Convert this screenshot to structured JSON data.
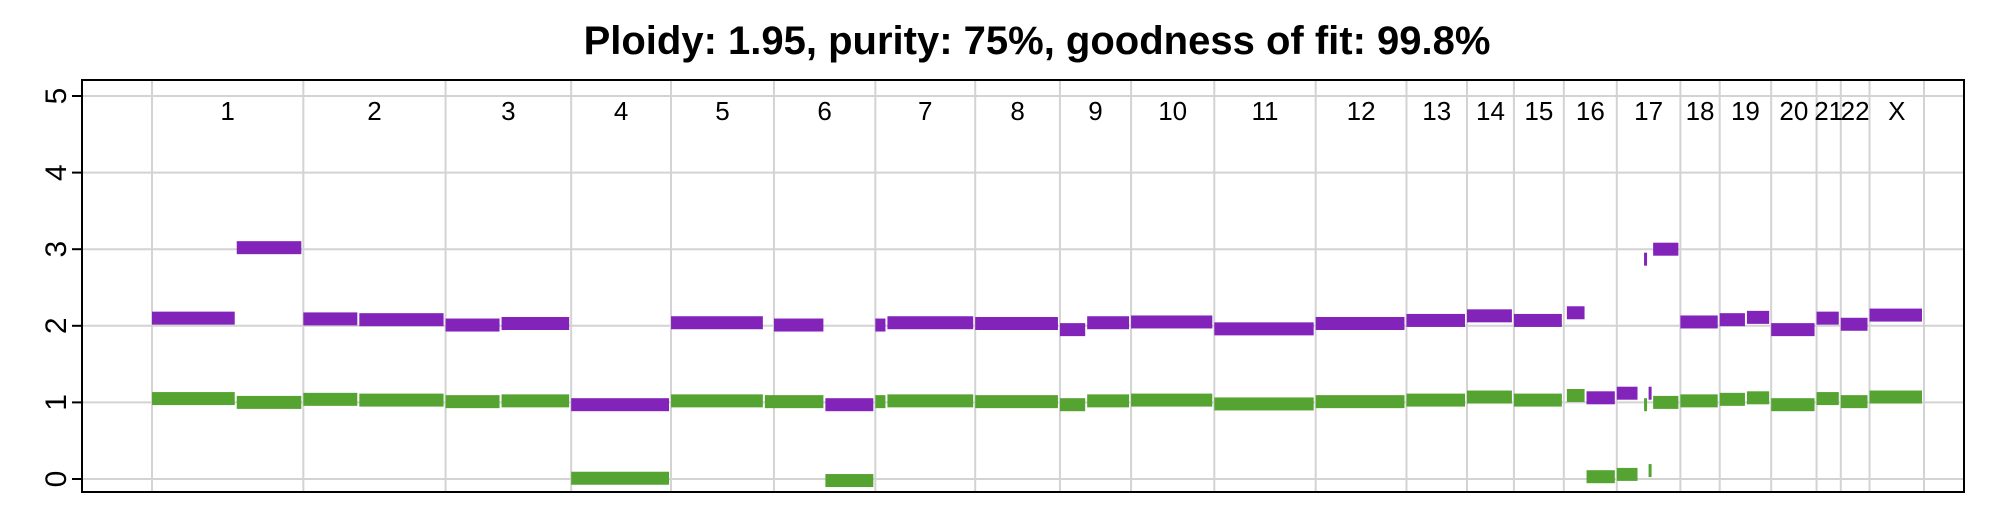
{
  "chart_data": {
    "type": "segment",
    "title": "Ploidy: 1.95, purity: 75%, goodness of fit: 99.8%",
    "xlabel": "",
    "ylabel": "",
    "ylim": [
      0,
      5
    ],
    "yticks": [
      0,
      1,
      2,
      3,
      4,
      5
    ],
    "grid": true,
    "colors": {
      "major": "#8224b9",
      "minor": "#55a331"
    },
    "chromosomes": [
      {
        "label": "1",
        "start": 0,
        "end": 1000
      },
      {
        "label": "2",
        "start": 1000,
        "end": 1940
      },
      {
        "label": "3",
        "start": 1940,
        "end": 2770
      },
      {
        "label": "4",
        "start": 2770,
        "end": 3430
      },
      {
        "label": "5",
        "start": 3430,
        "end": 4110
      },
      {
        "label": "6",
        "start": 4110,
        "end": 4780
      },
      {
        "label": "7",
        "start": 4780,
        "end": 5440
      },
      {
        "label": "8",
        "start": 5440,
        "end": 6000
      },
      {
        "label": "9",
        "start": 6000,
        "end": 6470
      },
      {
        "label": "10",
        "start": 6470,
        "end": 7020
      },
      {
        "label": "11",
        "start": 7020,
        "end": 7690
      },
      {
        "label": "12",
        "start": 7690,
        "end": 8290
      },
      {
        "label": "13",
        "start": 8290,
        "end": 8690
      },
      {
        "label": "14",
        "start": 8690,
        "end": 9000
      },
      {
        "label": "15",
        "start": 9000,
        "end": 9330
      },
      {
        "label": "16",
        "start": 9330,
        "end": 9680
      },
      {
        "label": "17",
        "start": 9680,
        "end": 10100
      },
      {
        "label": "18",
        "start": 10100,
        "end": 10360
      },
      {
        "label": "19",
        "start": 10360,
        "end": 10700
      },
      {
        "label": "20",
        "start": 10700,
        "end": 11000
      },
      {
        "label": "21",
        "start": 11000,
        "end": 11160
      },
      {
        "label": "22",
        "start": 11160,
        "end": 11350
      },
      {
        "label": "X",
        "start": 11350,
        "end": 11710
      }
    ],
    "series": [
      {
        "key": "major",
        "segments": [
          {
            "start": 0,
            "end": 560,
            "value": 2.1
          },
          {
            "start": 560,
            "end": 1000,
            "value": 3.02
          },
          {
            "start": 1000,
            "end": 1370,
            "value": 2.09
          },
          {
            "start": 1370,
            "end": 1940,
            "value": 2.08
          },
          {
            "start": 1940,
            "end": 2310,
            "value": 2.01
          },
          {
            "start": 2310,
            "end": 2770,
            "value": 2.03
          },
          {
            "start": 2770,
            "end": 3430,
            "value": 0.97
          },
          {
            "start": 3430,
            "end": 4050,
            "value": 2.04
          },
          {
            "start": 4110,
            "end": 4450,
            "value": 2.01
          },
          {
            "start": 4450,
            "end": 4780,
            "value": 0.97
          },
          {
            "start": 4780,
            "end": 4860,
            "value": 2.01
          },
          {
            "start": 4860,
            "end": 5440,
            "value": 2.04
          },
          {
            "start": 5440,
            "end": 6000,
            "value": 2.03
          },
          {
            "start": 6000,
            "end": 6180,
            "value": 1.95
          },
          {
            "start": 6180,
            "end": 6470,
            "value": 2.04
          },
          {
            "start": 6470,
            "end": 7020,
            "value": 2.05
          },
          {
            "start": 7020,
            "end": 7690,
            "value": 1.96
          },
          {
            "start": 7690,
            "end": 8290,
            "value": 2.03
          },
          {
            "start": 8290,
            "end": 8690,
            "value": 2.07
          },
          {
            "start": 8690,
            "end": 9000,
            "value": 2.13
          },
          {
            "start": 9000,
            "end": 9330,
            "value": 2.07
          },
          {
            "start": 9350,
            "end": 9480,
            "value": 2.17
          },
          {
            "start": 9480,
            "end": 9680,
            "value": 1.06
          },
          {
            "start": 9680,
            "end": 9830,
            "value": 1.12
          },
          {
            "start": 9860,
            "end": 9890,
            "value": 2.87
          },
          {
            "start": 9890,
            "end": 9910,
            "value": 1.12
          },
          {
            "start": 9920,
            "end": 10100,
            "value": 3.0
          },
          {
            "start": 10100,
            "end": 10360,
            "value": 2.05
          },
          {
            "start": 10360,
            "end": 10540,
            "value": 2.08
          },
          {
            "start": 10540,
            "end": 10700,
            "value": 2.11
          },
          {
            "start": 10700,
            "end": 11000,
            "value": 1.95
          },
          {
            "start": 11000,
            "end": 11160,
            "value": 2.1
          },
          {
            "start": 11160,
            "end": 11350,
            "value": 2.02
          },
          {
            "start": 11350,
            "end": 11710,
            "value": 2.14
          }
        ]
      },
      {
        "key": "minor",
        "segments": [
          {
            "start": 0,
            "end": 560,
            "value": 1.05
          },
          {
            "start": 560,
            "end": 1000,
            "value": 1.0
          },
          {
            "start": 1000,
            "end": 1370,
            "value": 1.04
          },
          {
            "start": 1370,
            "end": 1940,
            "value": 1.03
          },
          {
            "start": 1940,
            "end": 2310,
            "value": 1.01
          },
          {
            "start": 2310,
            "end": 2770,
            "value": 1.02
          },
          {
            "start": 2770,
            "end": 3430,
            "value": 0.01
          },
          {
            "start": 3430,
            "end": 4050,
            "value": 1.02
          },
          {
            "start": 4050,
            "end": 4450,
            "value": 1.01
          },
          {
            "start": 4450,
            "end": 4780,
            "value": -0.02
          },
          {
            "start": 4780,
            "end": 4860,
            "value": 1.01
          },
          {
            "start": 4860,
            "end": 5440,
            "value": 1.02
          },
          {
            "start": 5440,
            "end": 6000,
            "value": 1.01
          },
          {
            "start": 6000,
            "end": 6180,
            "value": 0.97
          },
          {
            "start": 6180,
            "end": 6470,
            "value": 1.02
          },
          {
            "start": 6470,
            "end": 7020,
            "value": 1.03
          },
          {
            "start": 7020,
            "end": 7690,
            "value": 0.98
          },
          {
            "start": 7690,
            "end": 8290,
            "value": 1.01
          },
          {
            "start": 8290,
            "end": 8690,
            "value": 1.03
          },
          {
            "start": 8690,
            "end": 9000,
            "value": 1.07
          },
          {
            "start": 9000,
            "end": 9330,
            "value": 1.03
          },
          {
            "start": 9350,
            "end": 9480,
            "value": 1.09
          },
          {
            "start": 9480,
            "end": 9680,
            "value": 0.03
          },
          {
            "start": 9680,
            "end": 9830,
            "value": 0.06
          },
          {
            "start": 9860,
            "end": 9890,
            "value": 0.97
          },
          {
            "start": 9890,
            "end": 9910,
            "value": 0.11
          },
          {
            "start": 9920,
            "end": 10100,
            "value": 1.0
          },
          {
            "start": 10100,
            "end": 10360,
            "value": 1.02
          },
          {
            "start": 10360,
            "end": 10540,
            "value": 1.04
          },
          {
            "start": 10540,
            "end": 10700,
            "value": 1.06
          },
          {
            "start": 10700,
            "end": 11000,
            "value": 0.97
          },
          {
            "start": 11000,
            "end": 11160,
            "value": 1.05
          },
          {
            "start": 11160,
            "end": 11350,
            "value": 1.01
          },
          {
            "start": 11350,
            "end": 11710,
            "value": 1.07
          }
        ]
      }
    ]
  }
}
